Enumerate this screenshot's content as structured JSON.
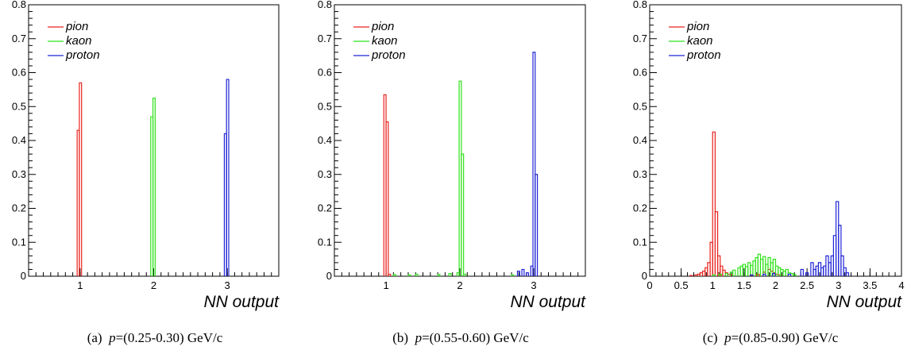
{
  "chart_data": [
    {
      "type": "histogram",
      "xlabel": "NN output",
      "ylim": [
        0,
        0.8
      ],
      "xlim": [
        0.3,
        3.7
      ],
      "yticks": [
        "0",
        "0.1",
        "0.2",
        "0.3",
        "0.4",
        "0.5",
        "0.6",
        "0.7",
        "0.8"
      ],
      "xticks": [
        "1",
        "2",
        "3"
      ],
      "legend_position": "top-left",
      "series": [
        {
          "name": "pion",
          "color": "#e8231d",
          "bins": [
            [
              0.96,
              0.43
            ],
            [
              0.99,
              0.57
            ]
          ]
        },
        {
          "name": "kaon",
          "color": "#2fe21a",
          "bins": [
            [
              1.96,
              0.47
            ],
            [
              1.99,
              0.525
            ]
          ]
        },
        {
          "name": "proton",
          "color": "#1f24d6",
          "bins": [
            [
              2.96,
              0.42
            ],
            [
              2.99,
              0.58
            ]
          ]
        }
      ],
      "caption": {
        "label": "(a)",
        "variable": "p",
        "text": "=(0.25-0.30) GeV/c"
      }
    },
    {
      "type": "histogram",
      "xlabel": "NN output",
      "ylim": [
        0,
        0.8
      ],
      "xlim": [
        0.3,
        3.7
      ],
      "yticks": [
        "0",
        "0.1",
        "0.2",
        "0.3",
        "0.4",
        "0.5",
        "0.6",
        "0.7",
        "0.8"
      ],
      "xticks": [
        "1",
        "2",
        "3"
      ],
      "legend_position": "top-left",
      "series": [
        {
          "name": "pion",
          "color": "#e8231d",
          "bins": [
            [
              0.97,
              0.535
            ],
            [
              1.0,
              0.455
            ],
            [
              1.03,
              0.006
            ]
          ]
        },
        {
          "name": "kaon",
          "color": "#2fe21a",
          "bins": [
            [
              1.1,
              0.005
            ],
            [
              1.3,
              0.004
            ],
            [
              1.4,
              0.006
            ],
            [
              1.7,
              0.005
            ],
            [
              1.85,
              0.008
            ],
            [
              1.96,
              0.01
            ],
            [
              1.99,
              0.575
            ],
            [
              2.02,
              0.36
            ],
            [
              2.05,
              0.006
            ],
            [
              2.7,
              0.004
            ]
          ]
        },
        {
          "name": "proton",
          "color": "#1f24d6",
          "bins": [
            [
              2.78,
              0.015
            ],
            [
              2.84,
              0.02
            ],
            [
              2.9,
              0.01
            ],
            [
              2.96,
              0.03
            ],
            [
              2.99,
              0.66
            ],
            [
              3.02,
              0.3
            ]
          ]
        }
      ],
      "caption": {
        "label": "(b)",
        "variable": "p",
        "text": "=(0.55-0.60) GeV/c"
      }
    },
    {
      "type": "histogram",
      "xlabel": "NN output",
      "ylim": [
        0,
        0.8
      ],
      "xlim": [
        0,
        4
      ],
      "yticks": [
        "0",
        "0.1",
        "0.2",
        "0.3",
        "0.4",
        "0.5",
        "0.6",
        "0.7",
        "0.8"
      ],
      "xticks": [
        "0",
        "0.5",
        "1",
        "1.5",
        "2",
        "2.5",
        "3",
        "3.5",
        "4"
      ],
      "legend_position": "top-left",
      "series": [
        {
          "name": "pion",
          "color": "#e8231d",
          "bins": [
            [
              0.64,
              0.002
            ],
            [
              0.72,
              0.004
            ],
            [
              0.76,
              0.006
            ],
            [
              0.8,
              0.01
            ],
            [
              0.84,
              0.015
            ],
            [
              0.88,
              0.025
            ],
            [
              0.92,
              0.04
            ],
            [
              0.96,
              0.1
            ],
            [
              1.0,
              0.425
            ],
            [
              1.04,
              0.19
            ],
            [
              1.08,
              0.06
            ],
            [
              1.12,
              0.03
            ],
            [
              1.16,
              0.018
            ],
            [
              1.2,
              0.01
            ],
            [
              1.24,
              0.006
            ],
            [
              1.28,
              0.004
            ],
            [
              1.6,
              0.003
            ],
            [
              1.7,
              0.006
            ],
            [
              1.8,
              0.012
            ],
            [
              1.88,
              0.02
            ],
            [
              1.92,
              0.015
            ],
            [
              1.96,
              0.01
            ],
            [
              2.0,
              0.006
            ],
            [
              2.04,
              0.004
            ]
          ]
        },
        {
          "name": "kaon",
          "color": "#2fe21a",
          "bins": [
            [
              1.0,
              0.004
            ],
            [
              1.1,
              0.006
            ],
            [
              1.2,
              0.008
            ],
            [
              1.28,
              0.012
            ],
            [
              1.32,
              0.018
            ],
            [
              1.4,
              0.025
            ],
            [
              1.44,
              0.03
            ],
            [
              1.48,
              0.035
            ],
            [
              1.52,
              0.028
            ],
            [
              1.56,
              0.04
            ],
            [
              1.6,
              0.032
            ],
            [
              1.64,
              0.045
            ],
            [
              1.68,
              0.055
            ],
            [
              1.72,
              0.065
            ],
            [
              1.76,
              0.05
            ],
            [
              1.8,
              0.058
            ],
            [
              1.84,
              0.035
            ],
            [
              1.88,
              0.055
            ],
            [
              1.92,
              0.04
            ],
            [
              1.96,
              0.05
            ],
            [
              2.0,
              0.03
            ],
            [
              2.04,
              0.025
            ],
            [
              2.08,
              0.02
            ],
            [
              2.12,
              0.015
            ],
            [
              2.16,
              0.02
            ],
            [
              2.2,
              0.01
            ],
            [
              2.24,
              0.008
            ],
            [
              2.28,
              0.005
            ]
          ]
        },
        {
          "name": "proton",
          "color": "#1f24d6",
          "bins": [
            [
              1.6,
              0.004
            ],
            [
              1.8,
              0.006
            ],
            [
              1.95,
              0.008
            ],
            [
              2.2,
              0.006
            ],
            [
              2.4,
              0.02
            ],
            [
              2.48,
              0.01
            ],
            [
              2.56,
              0.04
            ],
            [
              2.6,
              0.02
            ],
            [
              2.64,
              0.03
            ],
            [
              2.68,
              0.04
            ],
            [
              2.72,
              0.025
            ],
            [
              2.76,
              0.03
            ],
            [
              2.8,
              0.06
            ],
            [
              2.84,
              0.04
            ],
            [
              2.88,
              0.06
            ],
            [
              2.92,
              0.12
            ],
            [
              2.96,
              0.22
            ],
            [
              3.0,
              0.15
            ],
            [
              3.04,
              0.06
            ],
            [
              3.08,
              0.025
            ],
            [
              3.12,
              0.01
            ]
          ]
        }
      ],
      "caption": {
        "label": "(c)",
        "variable": "p",
        "text": "=(0.85-0.90) GeV/c"
      }
    }
  ]
}
